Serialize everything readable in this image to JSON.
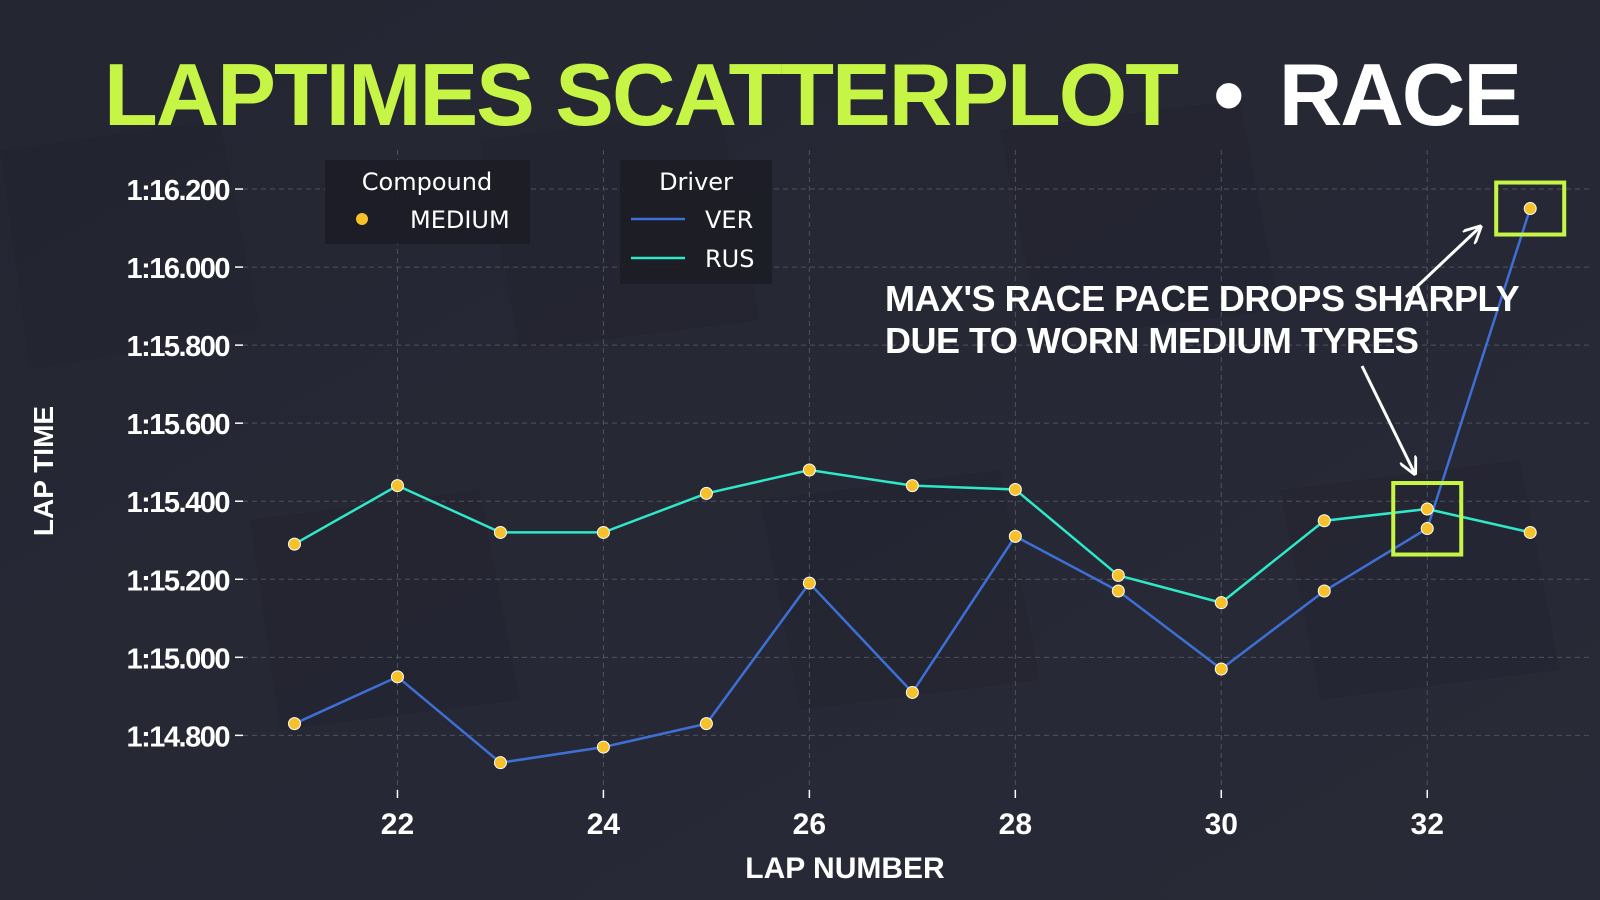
{
  "title": {
    "main": "LAPTIMES SCATTERPLOT",
    "separator": "•",
    "session": "RACE"
  },
  "colors": {
    "background": "#262835",
    "title_accent": "#c6f546",
    "title_white": "#ffffff",
    "ver": "#3d6fd4",
    "rus": "#2ee8c8",
    "marker": "#f6c12b",
    "highlight": "#c6f546",
    "grid": "#5a5c68",
    "text": "#ffffff"
  },
  "chart_data": {
    "type": "scatter",
    "xlabel": "LAP NUMBER",
    "ylabel": "LAP TIME",
    "xlim": [
      20.5,
      33.6
    ],
    "ylim": [
      74.66,
      76.3
    ],
    "x_ticks": [
      22,
      24,
      26,
      28,
      30,
      32
    ],
    "y_ticks": [
      {
        "value": 74.8,
        "label": "1:14.800"
      },
      {
        "value": 75.0,
        "label": "1:15.000"
      },
      {
        "value": 75.2,
        "label": "1:15.200"
      },
      {
        "value": 75.4,
        "label": "1:15.400"
      },
      {
        "value": 75.6,
        "label": "1:15.600"
      },
      {
        "value": 75.8,
        "label": "1:15.800"
      },
      {
        "value": 76.0,
        "label": "1:16.000"
      },
      {
        "value": 76.2,
        "label": "1:16.200"
      }
    ],
    "grid": true,
    "series": [
      {
        "name": "VER",
        "compound": "MEDIUM",
        "x": [
          21,
          22,
          23,
          24,
          25,
          26,
          27,
          28,
          29,
          30,
          31,
          32,
          33
        ],
        "y": [
          74.83,
          74.95,
          74.73,
          74.77,
          74.83,
          75.19,
          74.91,
          75.31,
          75.17,
          74.97,
          75.17,
          75.33,
          76.15
        ]
      },
      {
        "name": "RUS",
        "compound": "MEDIUM",
        "x": [
          21,
          22,
          23,
          24,
          25,
          26,
          27,
          28,
          29,
          30,
          31,
          32,
          33
        ],
        "y": [
          75.29,
          75.44,
          75.32,
          75.32,
          75.42,
          75.48,
          75.44,
          75.43,
          75.21,
          75.14,
          75.35,
          75.38,
          75.32
        ]
      }
    ],
    "legends": [
      {
        "title": "Compound",
        "items": [
          {
            "label": "MEDIUM",
            "kind": "marker"
          }
        ]
      },
      {
        "title": "Driver",
        "items": [
          {
            "label": "VER",
            "kind": "line",
            "series": "VER"
          },
          {
            "label": "RUS",
            "kind": "line",
            "series": "RUS"
          }
        ]
      }
    ],
    "annotation": {
      "lines": [
        "MAX'S RACE PACE DROPS SHARPLY",
        "DUE TO WORN MEDIUM TYRES"
      ]
    },
    "highlights": [
      {
        "x": 32,
        "y_low": 75.33,
        "y_high": 75.38
      },
      {
        "x": 33,
        "y_low": 76.15,
        "y_high": 76.15
      }
    ]
  }
}
